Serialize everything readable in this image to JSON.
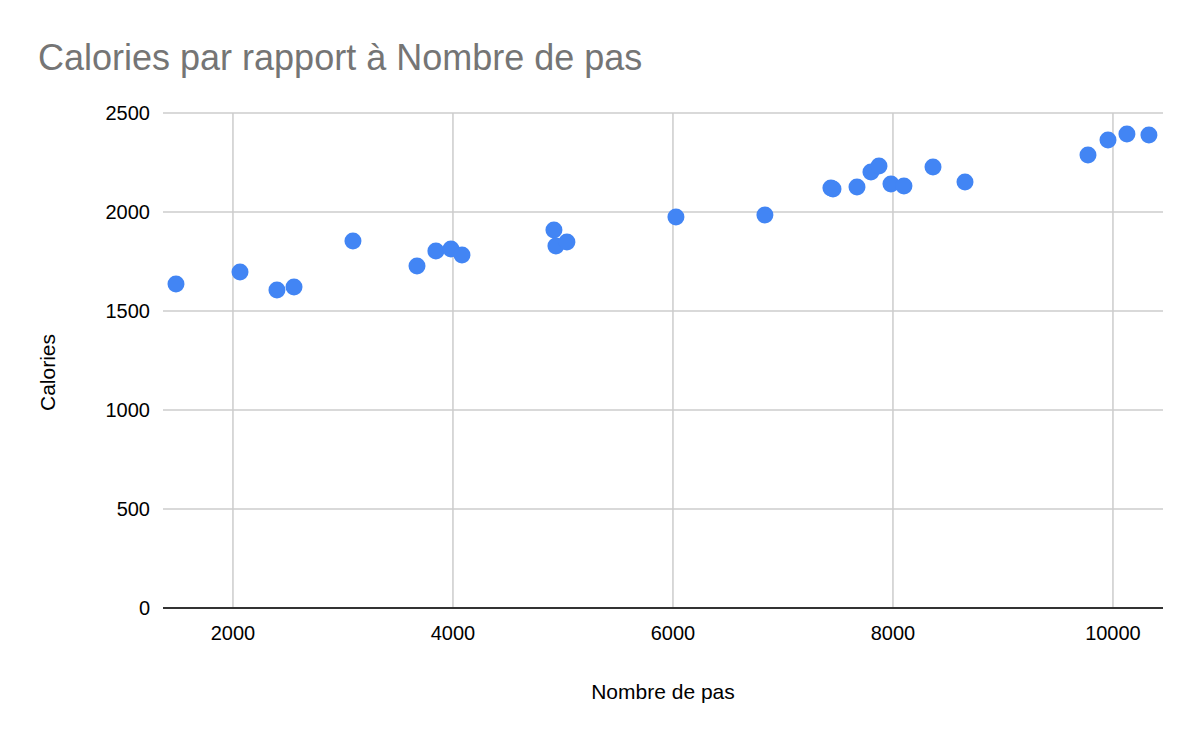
{
  "chart_data": {
    "type": "scatter",
    "title": "Calories par rapport à Nombre de pas",
    "x_label": "Nombre de pas",
    "y_label": "Calories",
    "x": [
      1482,
      2064,
      2400,
      2555,
      3091,
      3673,
      3845,
      3982,
      4082,
      4918,
      4936,
      5036,
      6027,
      6836,
      7436,
      7455,
      7673,
      7800,
      7873,
      7982,
      8100,
      8364,
      8655,
      9773,
      9955,
      10127,
      10327
    ],
    "values": [
      1636,
      1697,
      1606,
      1621,
      1854,
      1727,
      1803,
      1813,
      1783,
      1909,
      1828,
      1848,
      1975,
      1985,
      2121,
      2116,
      2126,
      2202,
      2232,
      2141,
      2131,
      2227,
      2152,
      2288,
      2364,
      2394,
      2389
    ],
    "color": "#4285f4",
    "marker": "circle",
    "xlim": [
      1364,
      10455
    ],
    "xticks": [
      2000,
      4000,
      6000,
      8000,
      10000
    ],
    "ylim": [
      0,
      2500
    ],
    "yticks": [
      0,
      500,
      1000,
      1500,
      2000,
      2500
    ],
    "grid": true
  }
}
